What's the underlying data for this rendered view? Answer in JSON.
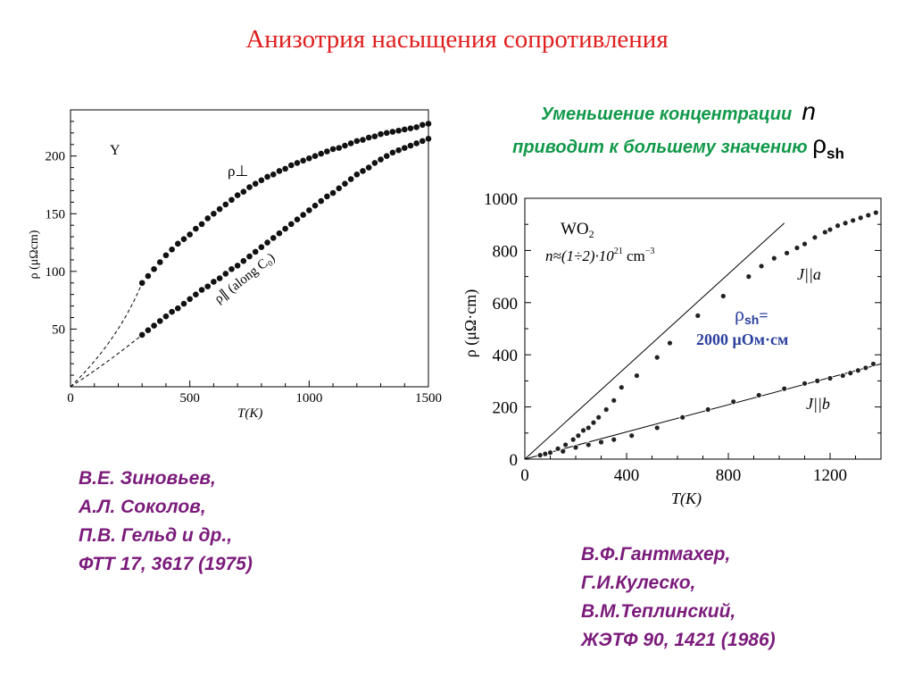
{
  "title": "Анизотрия насыщения сопротивления",
  "note": {
    "line1": "Уменьшение концентрации",
    "n": "n",
    "line2": "приводит к большему значению",
    "rho": "ρ",
    "rho_sub": "sh"
  },
  "refs": {
    "left": [
      "В.Е. Зиновьев,",
      "А.Л. Соколов,",
      "П.В. Гельд и др.,",
      "ФТТ  17,  3617 (1975)"
    ],
    "right": [
      "В.Ф.Гантмахер,",
      "Г.И.Кулеско,",
      "В.М.Теплинский,",
      "ЖЭТФ  90, 1421 (1986)"
    ]
  },
  "colors": {
    "title": "#e01e1e",
    "note": "#11994a",
    "refs": "#7b1b7b",
    "annotation": "#2b3f9e"
  },
  "chart_data": [
    {
      "type": "scatter",
      "xlabel": "T(K)",
      "ylabel": "ρ (μΩcm)",
      "xlim": [
        0,
        1500
      ],
      "ylim": [
        0,
        240
      ],
      "xticks": [
        0,
        500,
        1000,
        1500
      ],
      "yticks": [
        50,
        100,
        150,
        200
      ],
      "annotation": "Y",
      "series": [
        {
          "name": "ρ⊥",
          "x": [
            300,
            325,
            350,
            375,
            400,
            425,
            450,
            475,
            500,
            525,
            550,
            575,
            600,
            625,
            650,
            675,
            700,
            725,
            750,
            775,
            800,
            825,
            850,
            875,
            900,
            925,
            950,
            975,
            1000,
            1025,
            1050,
            1075,
            1100,
            1125,
            1150,
            1175,
            1200,
            1225,
            1250,
            1275,
            1300,
            1325,
            1350,
            1375,
            1400,
            1425,
            1450,
            1475,
            1500
          ],
          "y": [
            90,
            96,
            102,
            108,
            114,
            119,
            124,
            128,
            132,
            137,
            141,
            146,
            150,
            154,
            158,
            162,
            166,
            169,
            173,
            176,
            179,
            182,
            184,
            187,
            189,
            192,
            194,
            196,
            198,
            200,
            202,
            204,
            206,
            207,
            209,
            211,
            213,
            214,
            216,
            217,
            219,
            220,
            221,
            222,
            223,
            224,
            225,
            227,
            228
          ]
        },
        {
          "name": "ρ∥ (along C₀)",
          "x": [
            300,
            325,
            350,
            375,
            400,
            425,
            450,
            475,
            500,
            525,
            550,
            575,
            600,
            625,
            650,
            675,
            700,
            725,
            750,
            775,
            800,
            825,
            850,
            875,
            900,
            925,
            950,
            975,
            1000,
            1025,
            1050,
            1075,
            1100,
            1125,
            1150,
            1175,
            1200,
            1225,
            1250,
            1275,
            1300,
            1325,
            1350,
            1375,
            1400,
            1425,
            1450,
            1475,
            1500
          ],
          "y": [
            45,
            49,
            53,
            57,
            61,
            65,
            68,
            72,
            76,
            80,
            84,
            87,
            91,
            94,
            98,
            102,
            105,
            109,
            113,
            117,
            121,
            125,
            129,
            133,
            137,
            141,
            145,
            149,
            153,
            157,
            161,
            165,
            168,
            172,
            176,
            180,
            184,
            187,
            190,
            194,
            197,
            200,
            203,
            205,
            207,
            209,
            211,
            213,
            215
          ]
        }
      ]
    },
    {
      "type": "scatter",
      "xlabel": "T(K)",
      "ylabel": "ρ (μΩ·cm)",
      "xlim": [
        0,
        1400
      ],
      "ylim": [
        0,
        1000
      ],
      "xticks": [
        0,
        400,
        800,
        1200
      ],
      "yticks": [
        0,
        200,
        400,
        600,
        800,
        1000
      ],
      "sample": "WO",
      "sample_sub": "2",
      "concentration": "n≈(1÷2)·10",
      "concentration_exp": "21",
      "concentration_unit": " cm",
      "concentration_unit_exp": "−3",
      "rho_sh_label": "ρ",
      "rho_sh_sub": "sh",
      "rho_sh_eq": "=",
      "rho_sh_value": "2000 μОм·см",
      "reference_lines": [
        {
          "x": [
            0,
            1020
          ],
          "y": [
            0,
            905
          ]
        },
        {
          "x": [
            0,
            1400
          ],
          "y": [
            0,
            365
          ]
        }
      ],
      "series": [
        {
          "name": "J||a",
          "x": [
            60,
            80,
            100,
            130,
            160,
            190,
            210,
            230,
            250,
            270,
            290,
            320,
            350,
            380,
            440,
            520,
            570,
            680,
            780,
            880,
            930,
            980,
            1030,
            1070,
            1100,
            1140,
            1180,
            1200,
            1230,
            1260,
            1290,
            1320,
            1350,
            1380
          ],
          "y": [
            15,
            20,
            28,
            40,
            55,
            75,
            90,
            110,
            120,
            140,
            160,
            190,
            225,
            275,
            320,
            390,
            445,
            550,
            625,
            700,
            740,
            770,
            790,
            810,
            825,
            850,
            870,
            880,
            895,
            905,
            915,
            925,
            935,
            945
          ]
        },
        {
          "name": "J||b",
          "x": [
            60,
            100,
            150,
            200,
            250,
            300,
            350,
            420,
            520,
            620,
            720,
            820,
            920,
            1020,
            1100,
            1150,
            1200,
            1250,
            1280,
            1310,
            1340,
            1370
          ],
          "y": [
            15,
            25,
            30,
            45,
            55,
            65,
            75,
            90,
            120,
            160,
            190,
            220,
            245,
            270,
            290,
            300,
            310,
            320,
            330,
            340,
            350,
            365
          ]
        }
      ]
    }
  ]
}
